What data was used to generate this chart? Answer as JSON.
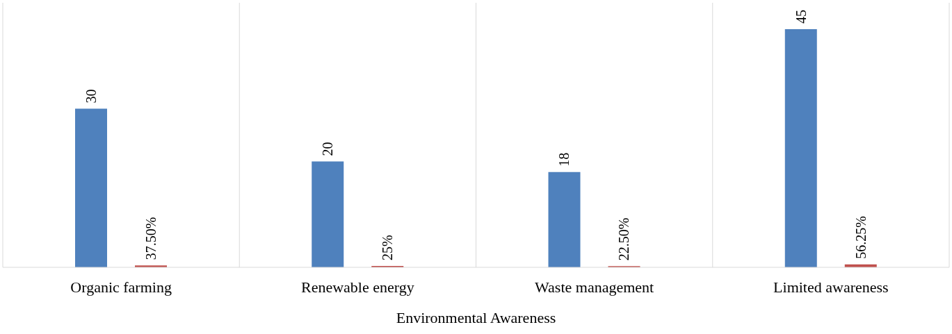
{
  "chart_data": {
    "type": "bar",
    "xlabel": "Environmental Awareness",
    "categories": [
      "Organic farming",
      "Renewable energy",
      "Waste management",
      "Limited awareness"
    ],
    "series": [
      {
        "color": "#4f81bd",
        "values": [
          30,
          20,
          18,
          45
        ],
        "value_labels": [
          "30",
          "20",
          "18",
          "45"
        ]
      },
      {
        "color": "#c0504d",
        "values": [
          0.375,
          0.25,
          0.225,
          0.5625
        ],
        "value_labels": [
          "37.50%",
          "25%",
          "22.50%",
          "56.25%"
        ]
      }
    ],
    "ylim": [
      0,
      50
    ],
    "tick_labels": "x",
    "grid": "x"
  }
}
